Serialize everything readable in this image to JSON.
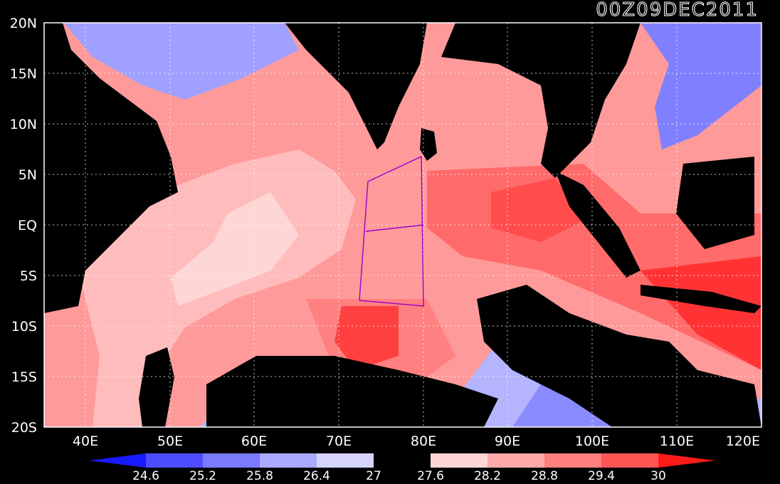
{
  "title": "00Z09DEC2011",
  "axes": {
    "lat_labels": [
      "20N",
      "15N",
      "10N",
      "5N",
      "EQ",
      "5S",
      "10S",
      "15S",
      "20S"
    ],
    "lon_labels": [
      "40E",
      "50E",
      "60E",
      "70E",
      "80E",
      "90E",
      "100E",
      "110E",
      "120E"
    ]
  },
  "colorbar": {
    "ticks": [
      "24.6",
      "25.2",
      "25.8",
      "26.4",
      "27",
      "27.6",
      "28.2",
      "28.8",
      "29.4",
      "30"
    ],
    "colors": [
      "#1a1aff",
      "#4d4dff",
      "#7a7aff",
      "#a9a9ff",
      "#d4d4ff",
      "#000000",
      "#ffd6d6",
      "#ffaaaa",
      "#ff7f7f",
      "#ff5555",
      "#ff1a1a"
    ]
  },
  "map": {
    "land_color": "#000000",
    "grid": "dotted",
    "box_color": "#9900cc"
  }
}
